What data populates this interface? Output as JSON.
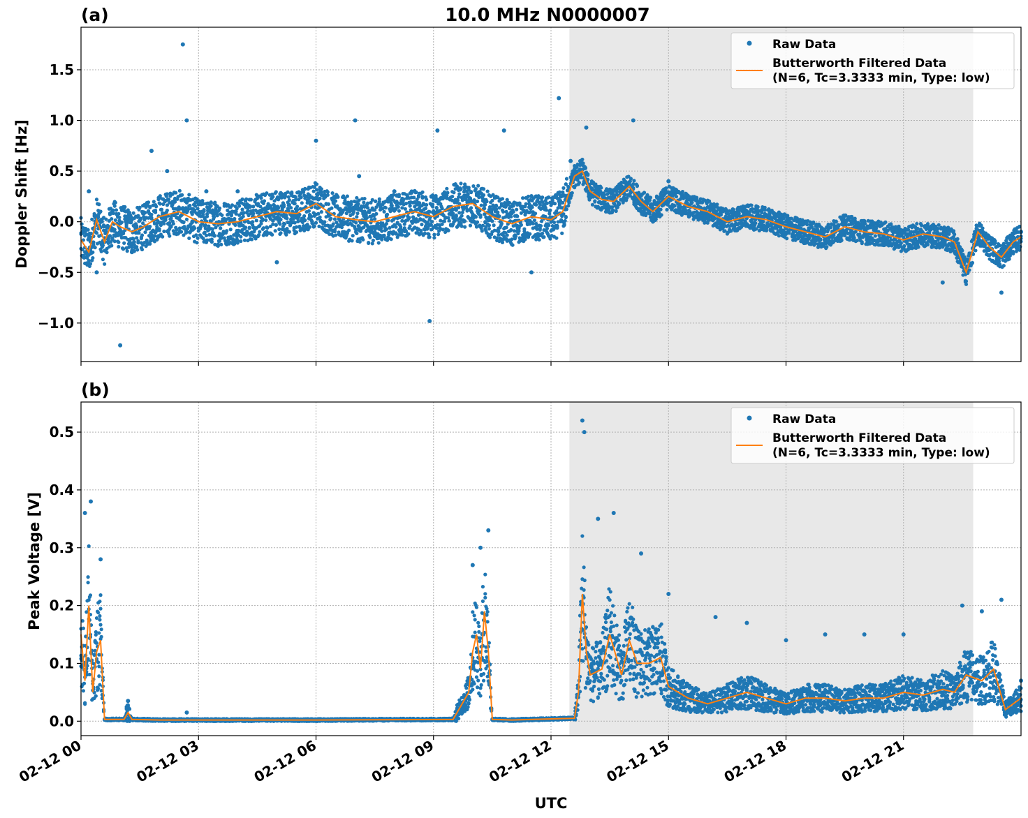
{
  "figure": {
    "title": "10.0 MHz N0000007",
    "xlabel": "UTC",
    "x_tick_labels": [
      "02-12 00",
      "02-12 03",
      "02-12 06",
      "02-12 09",
      "02-12 12",
      "02-12 15",
      "02-12 18",
      "02-12 21"
    ],
    "colors": {
      "raw": "#1f77b4",
      "filtered": "#ff7f0e",
      "shade": "#e8e8e8"
    }
  },
  "legend": {
    "raw_label": "Raw Data",
    "filtered_label_line1": "Butterworth Filtered Data",
    "filtered_label_line2": "(N=6, Tc=3.3333 min, Type: low)"
  },
  "chart_data": [
    {
      "type": "scatter",
      "panel": "(a)",
      "ylabel": "Doppler Shift [Hz]",
      "xlim_hours": [
        0,
        24
      ],
      "ylim": [
        -1.38,
        1.92
      ],
      "y_ticks": [
        -1.0,
        -0.5,
        0.0,
        0.5,
        1.0,
        1.5
      ],
      "y_tick_labels": [
        "−1.0",
        "−0.5",
        "0.0",
        "0.5",
        "1.0",
        "1.5"
      ],
      "shaded_region_hours": [
        12.47,
        22.78
      ],
      "grid": true,
      "legend_position": "top-right",
      "series": [
        {
          "name": "Raw Data",
          "kind": "scatter",
          "x_hours": [
            0.2,
            0.4,
            0.6,
            0.8,
            1.0,
            1.3,
            1.8,
            2.2,
            2.6,
            2.7,
            3.2,
            4.0,
            5.0,
            6.0,
            7.0,
            7.1,
            8.0,
            8.9,
            9.1,
            10.0,
            10.8,
            11.5,
            12.2,
            12.5,
            12.9,
            13.2,
            13.8,
            14.1,
            15.0,
            16.0,
            17.0,
            18.0,
            19.0,
            20.0,
            21.0,
            22.0,
            22.9,
            23.5,
            24.0
          ],
          "y": [
            0.3,
            -0.5,
            -0.2,
            0.1,
            -1.22,
            -0.3,
            0.7,
            0.5,
            1.75,
            1.0,
            0.3,
            0.3,
            -0.4,
            0.8,
            1.0,
            0.45,
            0.3,
            -0.98,
            0.9,
            0.2,
            0.9,
            -0.5,
            1.22,
            0.6,
            0.93,
            0.25,
            0.35,
            1.0,
            0.4,
            0.2,
            0.1,
            0.0,
            -0.2,
            0.0,
            -0.1,
            -0.6,
            -0.2,
            -0.7,
            -0.1
          ]
        },
        {
          "name": "Butterworth Filtered Data",
          "kind": "line",
          "x_hours": [
            0,
            0.2,
            0.4,
            0.6,
            0.8,
            1.0,
            1.3,
            1.6,
            2.0,
            2.5,
            3.0,
            3.5,
            4.0,
            4.5,
            5.0,
            5.5,
            6.0,
            6.5,
            7.0,
            7.5,
            8.0,
            8.5,
            9.0,
            9.5,
            10.0,
            10.5,
            11.0,
            11.5,
            12.0,
            12.3,
            12.6,
            12.8,
            13.0,
            13.3,
            13.6,
            14.0,
            14.3,
            14.6,
            15.0,
            15.5,
            16.0,
            16.5,
            17.0,
            17.5,
            18.0,
            18.5,
            19.0,
            19.5,
            20.0,
            20.5,
            21.0,
            21.5,
            22.0,
            22.3,
            22.6,
            22.9,
            23.2,
            23.5,
            23.8,
            24.0
          ],
          "y": [
            -0.18,
            -0.3,
            0.02,
            -0.2,
            0.0,
            -0.05,
            -0.1,
            -0.05,
            0.05,
            0.1,
            0.0,
            -0.02,
            0.0,
            0.05,
            0.1,
            0.08,
            0.18,
            0.05,
            0.02,
            0.0,
            0.05,
            0.1,
            0.05,
            0.15,
            0.18,
            0.05,
            -0.02,
            0.05,
            0.02,
            0.1,
            0.45,
            0.5,
            0.3,
            0.22,
            0.2,
            0.35,
            0.2,
            0.1,
            0.25,
            0.15,
            0.1,
            0.0,
            0.05,
            0.02,
            -0.05,
            -0.1,
            -0.15,
            -0.05,
            -0.1,
            -0.12,
            -0.18,
            -0.12,
            -0.15,
            -0.2,
            -0.5,
            -0.1,
            -0.25,
            -0.35,
            -0.2,
            -0.15
          ]
        }
      ]
    },
    {
      "type": "scatter",
      "panel": "(b)",
      "ylabel": "Peak Voltage [V]",
      "xlim_hours": [
        0,
        24
      ],
      "ylim": [
        -0.025,
        0.552
      ],
      "y_ticks": [
        0.0,
        0.1,
        0.2,
        0.3,
        0.4,
        0.5
      ],
      "y_tick_labels": [
        "0.0",
        "0.1",
        "0.2",
        "0.3",
        "0.4",
        "0.5"
      ],
      "shaded_region_hours": [
        12.47,
        22.78
      ],
      "grid": true,
      "legend_position": "top-right",
      "series": [
        {
          "name": "Raw Data",
          "kind": "scatter",
          "x_hours": [
            0.1,
            0.25,
            0.5,
            1.2,
            2.7,
            10.0,
            10.2,
            10.4,
            12.8,
            12.85,
            13.2,
            13.6,
            14.3,
            15.0,
            16.2,
            17.0,
            18.0,
            19.0,
            20.0,
            21.0,
            22.5,
            23.0,
            23.5,
            24.0
          ],
          "y": [
            0.36,
            0.38,
            0.28,
            0.035,
            0.015,
            0.27,
            0.3,
            0.33,
            0.52,
            0.5,
            0.35,
            0.36,
            0.29,
            0.22,
            0.18,
            0.17,
            0.14,
            0.15,
            0.15,
            0.15,
            0.2,
            0.19,
            0.21,
            0.07
          ]
        },
        {
          "name": "Butterworth Filtered Data",
          "kind": "line",
          "x_hours": [
            0,
            0.1,
            0.2,
            0.3,
            0.4,
            0.5,
            0.6,
            0.8,
            1.1,
            1.2,
            1.3,
            2.0,
            6.0,
            9.5,
            9.9,
            10.0,
            10.1,
            10.2,
            10.3,
            10.4,
            10.5,
            11.0,
            12.6,
            12.7,
            12.8,
            12.9,
            13.0,
            13.3,
            13.5,
            13.8,
            14.0,
            14.2,
            14.5,
            14.8,
            15.0,
            15.5,
            16.0,
            16.5,
            17.0,
            17.5,
            18.0,
            18.5,
            19.0,
            19.5,
            20.0,
            20.5,
            21.0,
            21.5,
            22.0,
            22.3,
            22.6,
            23.0,
            23.3,
            23.6,
            24.0
          ],
          "y": [
            0.15,
            0.07,
            0.2,
            0.05,
            0.12,
            0.14,
            0.003,
            0.003,
            0.003,
            0.015,
            0.003,
            0.002,
            0.002,
            0.003,
            0.05,
            0.12,
            0.15,
            0.09,
            0.19,
            0.12,
            0.003,
            0.002,
            0.005,
            0.05,
            0.22,
            0.12,
            0.08,
            0.09,
            0.15,
            0.08,
            0.14,
            0.1,
            0.1,
            0.11,
            0.06,
            0.04,
            0.03,
            0.04,
            0.05,
            0.04,
            0.03,
            0.04,
            0.04,
            0.035,
            0.04,
            0.04,
            0.05,
            0.045,
            0.055,
            0.05,
            0.08,
            0.07,
            0.09,
            0.02,
            0.04
          ]
        }
      ]
    }
  ]
}
